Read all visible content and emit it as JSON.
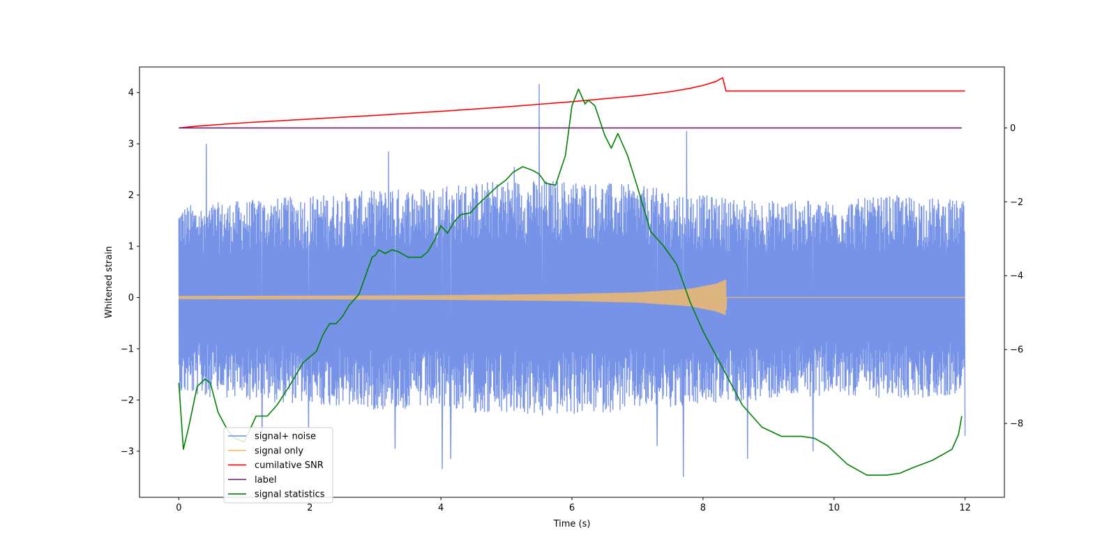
{
  "chart_data": {
    "type": "line",
    "xlabel": "Time (s)",
    "ylabel": "Whitened strain",
    "ylabel_right": "",
    "xlim": [
      -0.6,
      12.6
    ],
    "ylim": [
      -3.9,
      4.5
    ],
    "ylim_right": [
      -10.0,
      1.65
    ],
    "xticks": [
      0,
      2,
      4,
      6,
      8,
      10,
      12
    ],
    "yticks": [
      -3,
      -2,
      -1,
      0,
      1,
      2,
      3,
      4
    ],
    "yticks_right": [
      -8,
      -6,
      -4,
      -2,
      0
    ],
    "legend_position": "lower-left",
    "series": [
      {
        "name": "signal+ noise",
        "axis": "left",
        "color": "#6b8ae6",
        "x_range": [
          0,
          12
        ],
        "envelope_upper": [
          [
            0,
            1.8
          ],
          [
            1,
            1.9
          ],
          [
            2,
            2.0
          ],
          [
            3,
            2.1
          ],
          [
            4,
            2.2
          ],
          [
            5,
            2.3
          ],
          [
            6,
            2.3
          ],
          [
            7,
            2.2
          ],
          [
            8,
            2.0
          ],
          [
            9,
            1.9
          ],
          [
            10,
            1.9
          ],
          [
            11,
            2.0
          ],
          [
            12,
            1.9
          ]
        ],
        "envelope_lower": [
          [
            0,
            -1.9
          ],
          [
            1,
            -2.0
          ],
          [
            2,
            -2.1
          ],
          [
            3,
            -2.2
          ],
          [
            4,
            -2.2
          ],
          [
            5,
            -2.3
          ],
          [
            6,
            -2.3
          ],
          [
            7,
            -2.2
          ],
          [
            8,
            -2.1
          ],
          [
            9,
            -2.0
          ],
          [
            10,
            -1.9
          ],
          [
            11,
            -2.0
          ],
          [
            12,
            -1.9
          ]
        ],
        "spikes": [
          [
            0.42,
            3.0
          ],
          [
            5.5,
            4.17
          ],
          [
            5.55,
            -2.3
          ],
          [
            7.7,
            -3.5
          ],
          [
            4.02,
            -3.35
          ],
          [
            4.15,
            -3.15
          ],
          [
            3.2,
            2.85
          ],
          [
            8.68,
            -3.15
          ],
          [
            12.0,
            -2.7
          ],
          [
            1.27,
            -2.8
          ],
          [
            7.3,
            -2.9
          ],
          [
            9.68,
            -3.0
          ],
          [
            3.3,
            -2.95
          ],
          [
            7.75,
            3.25
          ],
          [
            1.98,
            -2.7
          ],
          [
            5.12,
            2.55
          ]
        ]
      },
      {
        "name": "signal only",
        "axis": "left",
        "color": "#ffbe5c",
        "chirp_end": 8.35,
        "amplitude": [
          [
            0,
            0.03
          ],
          [
            2,
            0.035
          ],
          [
            4,
            0.045
          ],
          [
            6,
            0.07
          ],
          [
            7,
            0.1
          ],
          [
            7.8,
            0.17
          ],
          [
            8.2,
            0.27
          ],
          [
            8.35,
            0.35
          ],
          [
            8.36,
            0.0
          ],
          [
            12,
            0.0
          ]
        ]
      },
      {
        "name": "cumilative SNR",
        "axis": "right",
        "color": "#ff0000",
        "x": [
          0,
          0.3,
          1,
          2,
          3,
          4,
          5,
          6,
          7,
          7.5,
          7.8,
          8.0,
          8.2,
          8.3,
          8.35,
          12
        ],
        "y": [
          0.0,
          0.05,
          0.14,
          0.24,
          0.34,
          0.45,
          0.57,
          0.71,
          0.87,
          0.98,
          1.07,
          1.15,
          1.26,
          1.36,
          1.0,
          1.0
        ]
      },
      {
        "name": "label",
        "axis": "right",
        "color": "#6a1b6e",
        "x": [
          0,
          11.95
        ],
        "y": [
          0,
          0
        ]
      },
      {
        "name": "signal statistics",
        "axis": "right",
        "color": "#008000",
        "x": [
          0.0,
          0.07,
          0.15,
          0.28,
          0.4,
          0.48,
          0.6,
          0.75,
          0.85,
          1.0,
          1.18,
          1.35,
          1.5,
          1.7,
          1.9,
          2.1,
          2.2,
          2.3,
          2.4,
          2.5,
          2.6,
          2.75,
          2.85,
          2.95,
          3.0,
          3.05,
          3.15,
          3.25,
          3.35,
          3.5,
          3.7,
          3.8,
          3.9,
          4.0,
          4.05,
          4.1,
          4.2,
          4.3,
          4.45,
          4.55,
          4.7,
          4.85,
          5.0,
          5.1,
          5.25,
          5.4,
          5.5,
          5.6,
          5.75,
          5.9,
          6.0,
          6.1,
          6.2,
          6.25,
          6.35,
          6.5,
          6.6,
          6.7,
          6.85,
          7.0,
          7.2,
          7.4,
          7.6,
          7.8,
          8.0,
          8.3,
          8.6,
          8.9,
          9.2,
          9.35,
          9.5,
          9.7,
          9.9,
          10.2,
          10.5,
          10.8,
          11.0,
          11.2,
          11.5,
          11.8,
          11.9,
          11.95
        ],
        "y": [
          -6.9,
          -8.7,
          -8.1,
          -7.0,
          -6.8,
          -6.9,
          -7.7,
          -8.2,
          -8.4,
          -8.5,
          -7.8,
          -7.8,
          -7.5,
          -6.95,
          -6.35,
          -6.05,
          -5.6,
          -5.3,
          -5.3,
          -5.1,
          -4.8,
          -4.5,
          -4.0,
          -3.5,
          -3.45,
          -3.3,
          -3.4,
          -3.3,
          -3.35,
          -3.5,
          -3.5,
          -3.35,
          -3.05,
          -2.65,
          -2.75,
          -2.85,
          -2.55,
          -2.35,
          -2.3,
          -2.1,
          -1.85,
          -1.6,
          -1.4,
          -1.2,
          -1.05,
          -1.15,
          -1.25,
          -1.5,
          -1.55,
          -0.75,
          0.6,
          1.05,
          0.65,
          0.75,
          0.6,
          -0.2,
          -0.55,
          -0.15,
          -0.75,
          -1.6,
          -2.8,
          -3.2,
          -3.7,
          -4.7,
          -5.5,
          -6.5,
          -7.5,
          -8.1,
          -8.35,
          -8.35,
          -8.35,
          -8.4,
          -8.6,
          -9.1,
          -9.4,
          -9.4,
          -9.35,
          -9.2,
          -9.0,
          -8.7,
          -8.3,
          -7.8
        ]
      }
    ]
  }
}
